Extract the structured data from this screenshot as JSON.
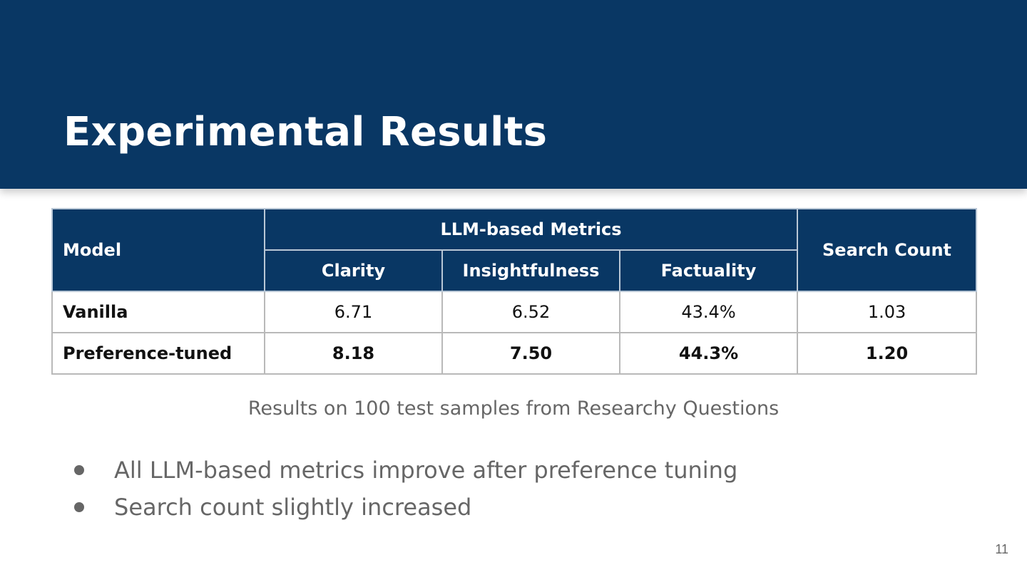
{
  "slide": {
    "title": "Experimental Results",
    "page_number": "11",
    "header_color": "#093764"
  },
  "table": {
    "headers": {
      "model": "Model",
      "group": "LLM-based Metrics",
      "clarity": "Clarity",
      "insightfulness": "Insightfulness",
      "factuality": "Factuality",
      "search_count": "Search Count"
    },
    "rows": [
      {
        "model": "Vanilla",
        "clarity": "6.71",
        "insightfulness": "6.52",
        "factuality": "43.4%",
        "search_count": "1.03"
      },
      {
        "model": "Preference-tuned",
        "clarity": "8.18",
        "insightfulness": "7.50",
        "factuality": "44.3%",
        "search_count": "1.20"
      }
    ]
  },
  "caption": "Results on 100 test samples from Researchy Questions",
  "bullets": [
    "All LLM-based metrics improve after preference tuning",
    "Search count slightly increased"
  ]
}
